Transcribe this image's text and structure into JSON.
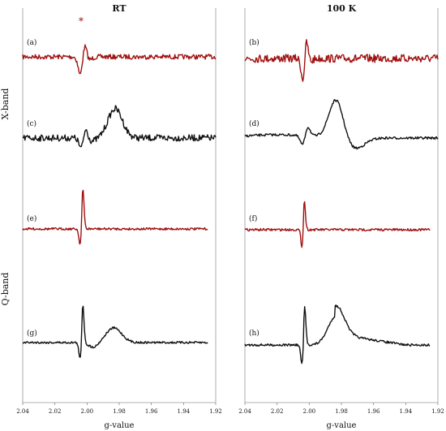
{
  "chart_data": {
    "type": "line",
    "columns": [
      "RT",
      "100 K"
    ],
    "rows": [
      "X-band",
      "Q-band"
    ],
    "xlabel": "g-value",
    "x_ticks": [
      "2.04",
      "2.02",
      "2.00",
      "1.98",
      "1.96",
      "1.94",
      "1.92"
    ],
    "xlim": [
      2.04,
      1.92
    ],
    "annotation": "*",
    "colors": {
      "red": "#a01010",
      "black": "#111111"
    },
    "panels": [
      {
        "label": "(a)",
        "column": "RT",
        "band": "X-band",
        "color": "red",
        "x_range": [
          2.04,
          1.92
        ],
        "features": {
          "peak_g": 2.003,
          "trough_g": 2.0025
        }
      },
      {
        "label": "(b)",
        "column": "100 K",
        "band": "X-band",
        "color": "red",
        "x_range": [
          2.04,
          1.92
        ],
        "features": {
          "peak_g": 2.003,
          "trough_g": 2.0025
        }
      },
      {
        "label": "(c)",
        "column": "RT",
        "band": "X-band",
        "color": "black",
        "x_range": [
          2.04,
          1.92
        ],
        "features": {
          "peak_g": 2.003,
          "trough_g": 2.0,
          "broad_g": 1.982
        }
      },
      {
        "label": "(d)",
        "column": "100 K",
        "band": "X-band",
        "color": "black",
        "x_range": [
          2.04,
          1.92
        ],
        "features": {
          "peak_g": 2.003,
          "trough_g": 2.0,
          "broad_g": 1.983
        }
      },
      {
        "label": "(e)",
        "column": "RT",
        "band": "Q-band",
        "color": "red",
        "x_range": [
          2.04,
          1.925
        ],
        "features": {
          "peak_g": 2.004,
          "trough_g": 2.002
        }
      },
      {
        "label": "(f)",
        "column": "100 K",
        "band": "Q-band",
        "color": "red",
        "x_range": [
          2.04,
          1.925
        ],
        "features": {
          "peak_g": 2.004,
          "trough_g": 2.002
        }
      },
      {
        "label": "(g)",
        "column": "RT",
        "band": "Q-band",
        "color": "black",
        "x_range": [
          2.04,
          1.925
        ],
        "features": {
          "peak_g": 2.004,
          "trough_g": 2.002,
          "broad_g": 1.983
        }
      },
      {
        "label": "(h)",
        "column": "100 K",
        "band": "Q-band",
        "color": "black",
        "x_range": [
          2.04,
          1.925
        ],
        "features": {
          "peak_g": 2.004,
          "trough_g": 2.002,
          "broad_g": 1.983
        }
      }
    ]
  }
}
